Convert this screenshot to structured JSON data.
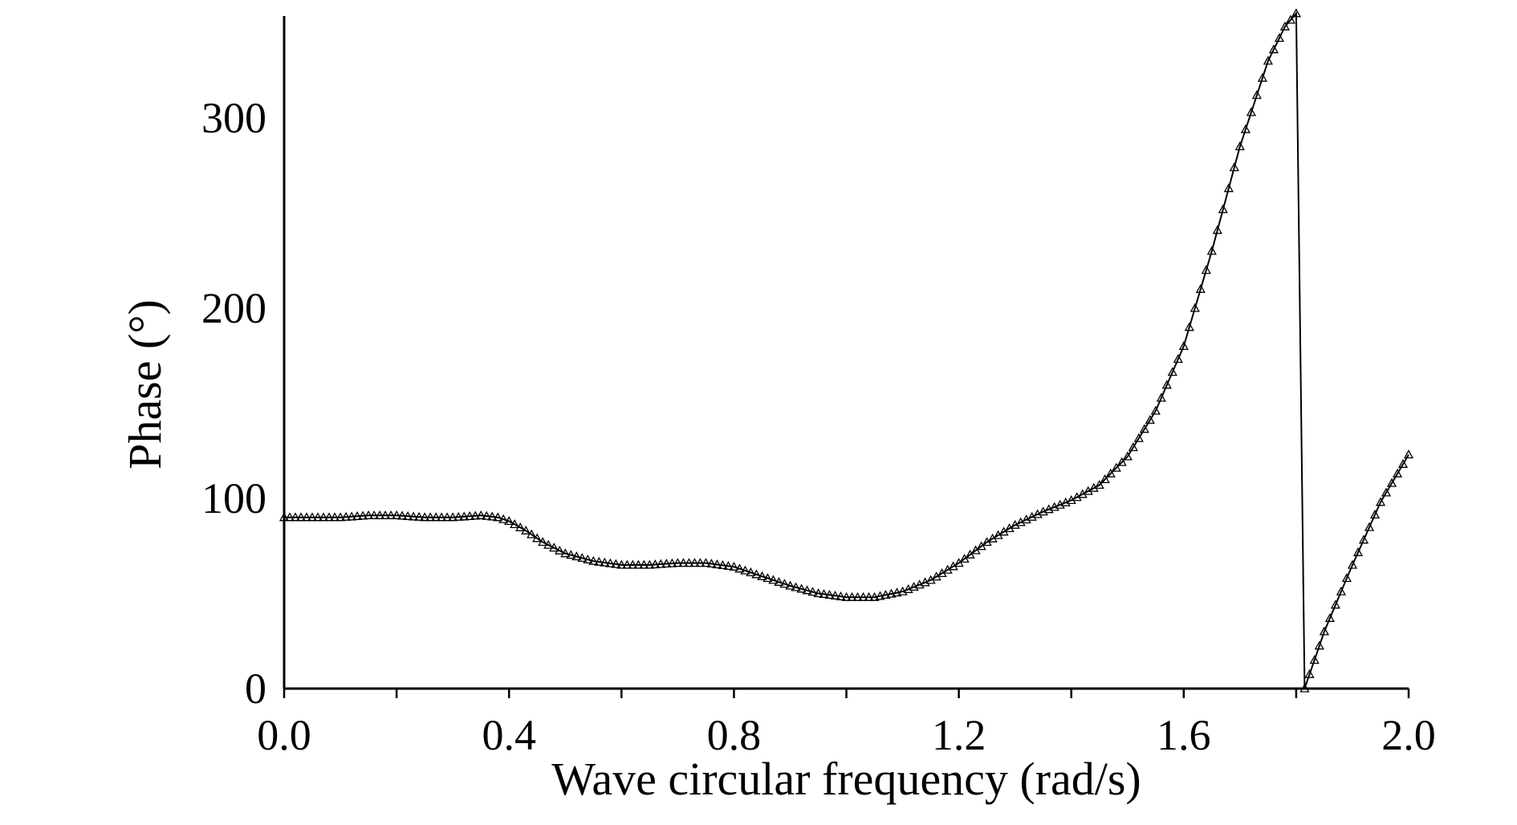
{
  "chart_data": {
    "type": "line",
    "title": "",
    "xlabel": "Wave circular frequency (rad/s)",
    "ylabel": "Phase (°)",
    "xlim": [
      0.0,
      2.0
    ],
    "ylim": [
      0,
      355
    ],
    "xticks": [
      "0.0",
      "0.4",
      "0.8",
      "1.2",
      "1.6",
      "2.0"
    ],
    "yticks": [
      "0",
      "100",
      "200",
      "300"
    ],
    "grid": false,
    "legend": "none",
    "marker": "triangle",
    "series": [
      {
        "points": [
          [
            0.0,
            90
          ],
          [
            0.05,
            90
          ],
          [
            0.1,
            90
          ],
          [
            0.15,
            91
          ],
          [
            0.2,
            91
          ],
          [
            0.25,
            90
          ],
          [
            0.3,
            90
          ],
          [
            0.35,
            91
          ],
          [
            0.38,
            90
          ],
          [
            0.4,
            88
          ],
          [
            0.43,
            83
          ],
          [
            0.46,
            77
          ],
          [
            0.5,
            71
          ],
          [
            0.55,
            67
          ],
          [
            0.6,
            65
          ],
          [
            0.65,
            65
          ],
          [
            0.7,
            66
          ],
          [
            0.75,
            66
          ],
          [
            0.8,
            64
          ],
          [
            0.85,
            59
          ],
          [
            0.9,
            54
          ],
          [
            0.95,
            50
          ],
          [
            1.0,
            48
          ],
          [
            1.05,
            48
          ],
          [
            1.1,
            51
          ],
          [
            1.15,
            57
          ],
          [
            1.2,
            66
          ],
          [
            1.25,
            77
          ],
          [
            1.3,
            86
          ],
          [
            1.35,
            93
          ],
          [
            1.4,
            99
          ],
          [
            1.45,
            107
          ],
          [
            1.5,
            122
          ],
          [
            1.55,
            146
          ],
          [
            1.6,
            180
          ],
          [
            1.65,
            230
          ],
          [
            1.7,
            285
          ],
          [
            1.75,
            330
          ],
          [
            1.78,
            348
          ],
          [
            1.8,
            355
          ],
          [
            1.815,
            0
          ],
          [
            1.85,
            30
          ],
          [
            1.9,
            65
          ],
          [
            1.95,
            98
          ],
          [
            2.0,
            123
          ]
        ]
      }
    ]
  }
}
